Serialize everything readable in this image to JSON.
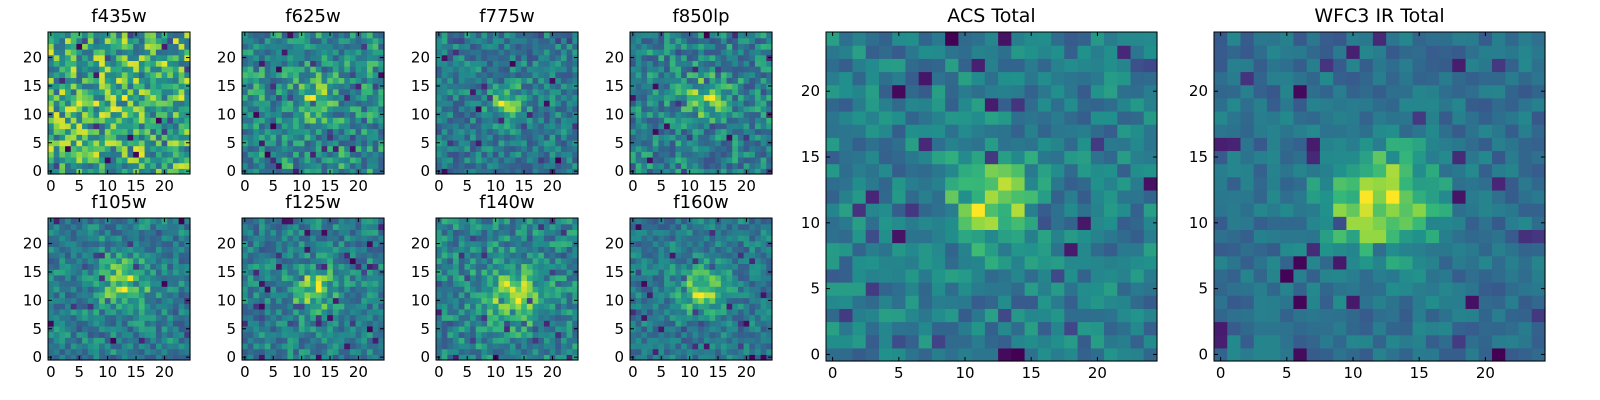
{
  "chart_data": {
    "type": "heatmap",
    "colormap": "viridis",
    "description_note": "Pixel values are normalized intensities (0-1) estimated from the rendered colors.",
    "panels": [
      {
        "id": "f435w",
        "title": "f435w",
        "size": "small",
        "grid": 25,
        "xlim": [
          0,
          24
        ],
        "ylim": [
          0,
          24
        ],
        "xticks": [
          "0",
          "5",
          "10",
          "15",
          "20"
        ],
        "xtick_values": [
          0,
          5,
          10,
          15,
          20
        ],
        "yticks": [
          "0",
          "5",
          "10",
          "15",
          "20"
        ],
        "ytick_values": [
          0,
          5,
          10,
          15,
          20
        ],
        "pixels": "random noise, peak none",
        "center": [
          12,
          12
        ],
        "sigma": 3.0,
        "amplitude": 0.05,
        "noise": 0.3,
        "seed": 11
      },
      {
        "id": "f625w",
        "title": "f625w",
        "size": "small",
        "grid": 25,
        "xlim": [
          0,
          24
        ],
        "ylim": [
          0,
          24
        ],
        "xticks": [
          "0",
          "5",
          "10",
          "15",
          "20"
        ],
        "xtick_values": [
          0,
          5,
          10,
          15,
          20
        ],
        "yticks": [
          "0",
          "5",
          "10",
          "15",
          "20"
        ],
        "ytick_values": [
          0,
          5,
          10,
          15,
          20
        ],
        "pixels": "noise with faint central source",
        "center": [
          12,
          13
        ],
        "sigma": 2.6,
        "amplitude": 0.25,
        "noise": 0.28,
        "seed": 23
      },
      {
        "id": "f775w",
        "title": "f775w",
        "size": "small",
        "grid": 25,
        "xlim": [
          0,
          24
        ],
        "ylim": [
          0,
          24
        ],
        "xticks": [
          "0",
          "5",
          "10",
          "15",
          "20"
        ],
        "xtick_values": [
          0,
          5,
          10,
          15,
          20
        ],
        "yticks": [
          "0",
          "5",
          "10",
          "15",
          "20"
        ],
        "ytick_values": [
          0,
          5,
          10,
          15,
          20
        ],
        "pixels": "noise with central source",
        "center": [
          12,
          12
        ],
        "sigma": 2.2,
        "amplitude": 0.45,
        "noise": 0.26,
        "seed": 37
      },
      {
        "id": "f850lp",
        "title": "f850lp",
        "size": "small",
        "grid": 25,
        "xlim": [
          0,
          24
        ],
        "ylim": [
          0,
          24
        ],
        "xticks": [
          "0",
          "5",
          "10",
          "15",
          "20"
        ],
        "xtick_values": [
          0,
          5,
          10,
          15,
          20
        ],
        "yticks": [
          "0",
          "5",
          "10",
          "15",
          "20"
        ],
        "ytick_values": [
          0,
          5,
          10,
          15,
          20
        ],
        "pixels": "noise with central source",
        "center": [
          13,
          13
        ],
        "sigma": 2.6,
        "amplitude": 0.35,
        "noise": 0.28,
        "seed": 41
      },
      {
        "id": "f105w",
        "title": "f105w",
        "size": "small",
        "grid": 25,
        "xlim": [
          0,
          24
        ],
        "ylim": [
          0,
          24
        ],
        "xticks": [
          "0",
          "5",
          "10",
          "15",
          "20"
        ],
        "xtick_values": [
          0,
          5,
          10,
          15,
          20
        ],
        "yticks": [
          "0",
          "5",
          "10",
          "15",
          "20"
        ],
        "ytick_values": [
          0,
          5,
          10,
          15,
          20
        ],
        "pixels": "source with noise",
        "center": [
          13,
          13
        ],
        "sigma": 3.2,
        "amplitude": 0.4,
        "noise": 0.22,
        "seed": 53
      },
      {
        "id": "f125w",
        "title": "f125w",
        "size": "small",
        "grid": 25,
        "xlim": [
          0,
          24
        ],
        "ylim": [
          0,
          24
        ],
        "xticks": [
          "0",
          "5",
          "10",
          "15",
          "20"
        ],
        "xtick_values": [
          0,
          5,
          10,
          15,
          20
        ],
        "yticks": [
          "0",
          "5",
          "10",
          "15",
          "20"
        ],
        "ytick_values": [
          0,
          5,
          10,
          15,
          20
        ],
        "pixels": "source with noise",
        "center": [
          12,
          12
        ],
        "sigma": 2.8,
        "amplitude": 0.42,
        "noise": 0.24,
        "seed": 67
      },
      {
        "id": "f140w",
        "title": "f140w",
        "size": "small",
        "grid": 25,
        "xlim": [
          0,
          24
        ],
        "ylim": [
          0,
          24
        ],
        "xticks": [
          "0",
          "5",
          "10",
          "15",
          "20"
        ],
        "xtick_values": [
          0,
          5,
          10,
          15,
          20
        ],
        "yticks": [
          "0",
          "5",
          "10",
          "15",
          "20"
        ],
        "ytick_values": [
          0,
          5,
          10,
          15,
          20
        ],
        "pixels": "source with noise",
        "center": [
          13,
          11
        ],
        "sigma": 3.4,
        "amplitude": 0.4,
        "noise": 0.22,
        "seed": 79
      },
      {
        "id": "f160w",
        "title": "f160w",
        "size": "small",
        "grid": 25,
        "xlim": [
          0,
          24
        ],
        "ylim": [
          0,
          24
        ],
        "xticks": [
          "0",
          "5",
          "10",
          "15",
          "20"
        ],
        "xtick_values": [
          0,
          5,
          10,
          15,
          20
        ],
        "yticks": [
          "0",
          "5",
          "10",
          "15",
          "20"
        ],
        "ytick_values": [
          0,
          5,
          10,
          15,
          20
        ],
        "pixels": "source with noise",
        "center": [
          12,
          12
        ],
        "sigma": 3.0,
        "amplitude": 0.45,
        "noise": 0.22,
        "seed": 83
      },
      {
        "id": "acs-total",
        "title": "ACS Total",
        "size": "big",
        "grid": 25,
        "xlim": [
          0,
          24
        ],
        "ylim": [
          0,
          24
        ],
        "xticks": [
          "0",
          "5",
          "10",
          "15",
          "20"
        ],
        "xtick_values": [
          0,
          5,
          10,
          15,
          20
        ],
        "yticks": [
          "0",
          "5",
          "10",
          "15",
          "20"
        ],
        "ytick_values": [
          0,
          5,
          10,
          15,
          20
        ],
        "pixels": "stacked ACS image, source at center",
        "center": [
          12,
          11.5
        ],
        "sigma": 2.2,
        "amplitude": 0.5,
        "noise": 0.2,
        "seed": 97
      },
      {
        "id": "wfc3-ir-total",
        "title": "WFC3 IR Total",
        "size": "big",
        "grid": 25,
        "xlim": [
          0,
          24
        ],
        "ylim": [
          0,
          24
        ],
        "xticks": [
          "0",
          "5",
          "10",
          "15",
          "20"
        ],
        "xtick_values": [
          0,
          5,
          10,
          15,
          20
        ],
        "yticks": [
          "0",
          "5",
          "10",
          "15",
          "20"
        ],
        "ytick_values": [
          0,
          5,
          10,
          15,
          20
        ],
        "pixels": "stacked WFC3 IR image, extended source at center",
        "center": [
          12,
          11.5
        ],
        "sigma": 3.2,
        "amplitude": 0.55,
        "noise": 0.15,
        "seed": 101
      }
    ]
  }
}
